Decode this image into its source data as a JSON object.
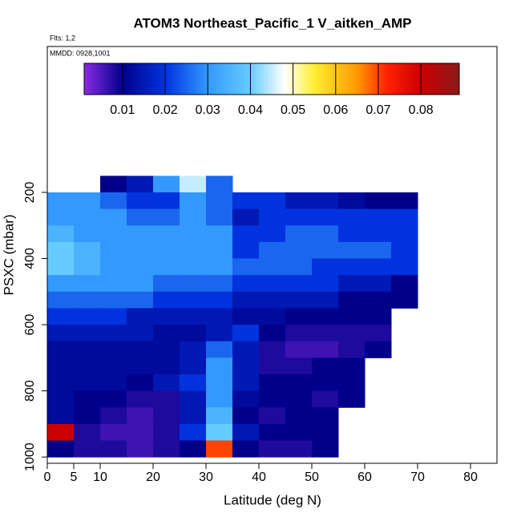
{
  "chart_data": {
    "type": "heatmap",
    "title": "ATOM3 Northeast_Pacific_1 V_aitken_AMP",
    "annotations": [
      "Flts: 1,2",
      "MMDD: 0928,1001"
    ],
    "xlabel": "Latitude (deg N)",
    "ylabel": "PSXC (mbar)",
    "xlim": [
      0,
      85
    ],
    "xticks": [
      0,
      5,
      10,
      20,
      30,
      40,
      50,
      60,
      70,
      80
    ],
    "ylim": [
      1019,
      -241
    ],
    "yticks": [
      200,
      400,
      600,
      800,
      1000
    ],
    "lat_edges": [
      0,
      5,
      10,
      15,
      20,
      25,
      30,
      35,
      40,
      45,
      50,
      55,
      60,
      65,
      70
    ],
    "p_edges": [
      150,
      200,
      250,
      300,
      350,
      400,
      450,
      500,
      550,
      600,
      650,
      700,
      750,
      800,
      850,
      900,
      950,
      1000
    ],
    "values": [
      [
        null,
        null,
        0.01,
        0.015,
        0.03,
        0.045,
        0.025,
        null,
        null,
        null,
        null,
        null,
        null,
        null
      ],
      [
        0.03,
        0.03,
        0.025,
        0.02,
        0.02,
        0.03,
        0.025,
        0.02,
        0.02,
        0.015,
        0.015,
        0.012,
        0.01,
        0.01
      ],
      [
        0.03,
        0.03,
        0.03,
        0.025,
        0.025,
        0.03,
        0.025,
        0.015,
        0.02,
        0.02,
        0.02,
        0.02,
        0.02,
        0.02
      ],
      [
        0.035,
        0.03,
        0.03,
        0.03,
        0.03,
        0.03,
        0.03,
        0.02,
        0.02,
        0.025,
        0.025,
        0.02,
        0.02,
        0.02
      ],
      [
        0.04,
        0.035,
        0.03,
        0.03,
        0.03,
        0.03,
        0.03,
        0.02,
        0.025,
        0.025,
        0.025,
        0.025,
        0.025,
        0.02
      ],
      [
        0.04,
        0.035,
        0.03,
        0.03,
        0.03,
        0.03,
        0.03,
        0.025,
        0.025,
        0.025,
        0.02,
        0.02,
        0.02,
        0.02
      ],
      [
        0.03,
        0.03,
        0.03,
        0.03,
        0.025,
        0.025,
        0.025,
        0.02,
        0.02,
        0.02,
        0.02,
        0.015,
        0.015,
        0.01
      ],
      [
        0.025,
        0.025,
        0.025,
        0.025,
        0.02,
        0.02,
        0.02,
        0.015,
        0.015,
        0.015,
        0.015,
        0.01,
        0.01,
        0.01
      ],
      [
        0.02,
        0.02,
        0.02,
        0.015,
        0.015,
        0.015,
        0.015,
        0.012,
        0.012,
        0.01,
        0.01,
        0.01,
        0.01,
        null
      ],
      [
        0.015,
        0.015,
        0.015,
        0.015,
        0.012,
        0.012,
        0.015,
        0.02,
        0.01,
        0.008,
        0.008,
        0.008,
        0.008,
        null
      ],
      [
        0.012,
        0.012,
        0.012,
        0.012,
        0.012,
        0.015,
        0.025,
        0.015,
        0.008,
        0.006,
        0.006,
        0.008,
        0.01,
        null
      ],
      [
        0.012,
        0.012,
        0.012,
        0.012,
        0.012,
        0.015,
        0.03,
        0.015,
        0.008,
        0.008,
        0.01,
        0.01,
        null,
        null
      ],
      [
        0.012,
        0.012,
        0.012,
        0.01,
        0.015,
        0.02,
        0.03,
        0.015,
        0.01,
        0.01,
        0.01,
        0.01,
        null,
        null
      ],
      [
        0.012,
        0.01,
        0.01,
        0.008,
        0.008,
        0.015,
        0.03,
        0.012,
        0.01,
        0.01,
        0.008,
        0.01,
        null,
        null
      ],
      [
        0.012,
        0.01,
        0.008,
        0.006,
        0.008,
        0.015,
        0.035,
        0.01,
        0.008,
        0.01,
        0.01,
        null,
        null,
        null
      ],
      [
        0.08,
        0.008,
        0.006,
        0.006,
        0.008,
        0.02,
        0.04,
        0.015,
        0.01,
        0.01,
        0.01,
        null,
        null,
        null
      ],
      [
        0.01,
        0.008,
        0.008,
        0.006,
        0.008,
        0.01,
        0.07,
        0.01,
        0.008,
        0.008,
        0.01,
        null,
        null,
        null
      ]
    ],
    "clim": [
      0.001,
      0.089
    ],
    "cticks": [
      0.01,
      0.02,
      0.03,
      0.04,
      0.05,
      0.06,
      0.07,
      0.08
    ],
    "colormap": [
      {
        "value": 0.001,
        "color": "#8a2be2"
      },
      {
        "value": 0.01,
        "color": "#00008b"
      },
      {
        "value": 0.02,
        "color": "#0033dd"
      },
      {
        "value": 0.03,
        "color": "#3399ff"
      },
      {
        "value": 0.04,
        "color": "#66ccff"
      },
      {
        "value": 0.048,
        "color": "#ffffff"
      },
      {
        "value": 0.055,
        "color": "#ffee33"
      },
      {
        "value": 0.065,
        "color": "#ff9900"
      },
      {
        "value": 0.072,
        "color": "#ff2200"
      },
      {
        "value": 0.08,
        "color": "#cc0000"
      },
      {
        "value": 0.089,
        "color": "#8b1a1a"
      }
    ]
  }
}
